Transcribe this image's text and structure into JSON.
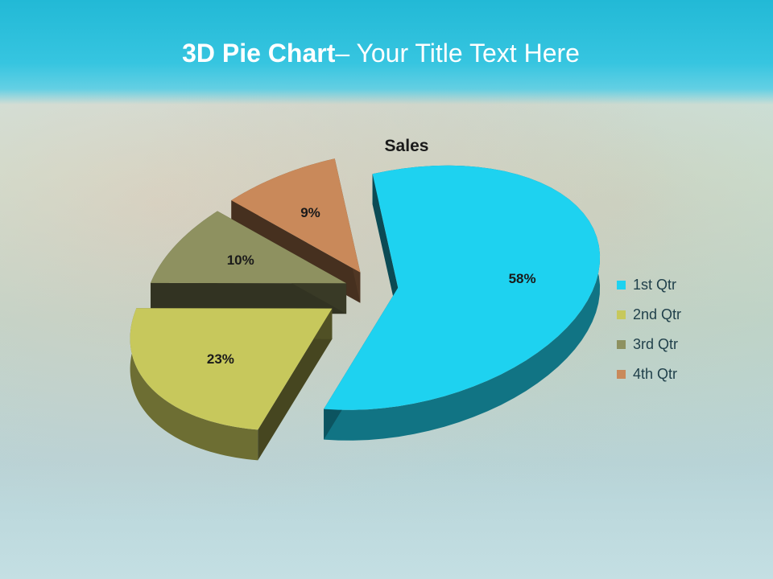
{
  "slide": {
    "title_bold": "3D Pie Chart",
    "title_rest": "– Your Title Text Here"
  },
  "chart_data": {
    "type": "pie",
    "title": "Sales",
    "categories": [
      "1st Qtr",
      "2nd Qtr",
      "3rd Qtr",
      "4th Qtr"
    ],
    "values": [
      58,
      23,
      10,
      9
    ],
    "labels": [
      "58%",
      "23%",
      "10%",
      "9%"
    ],
    "colors": [
      "#1ed2f0",
      "#c7c85c",
      "#8e9160",
      "#c9895a"
    ],
    "legend": "right",
    "style": "3d-exploded"
  }
}
